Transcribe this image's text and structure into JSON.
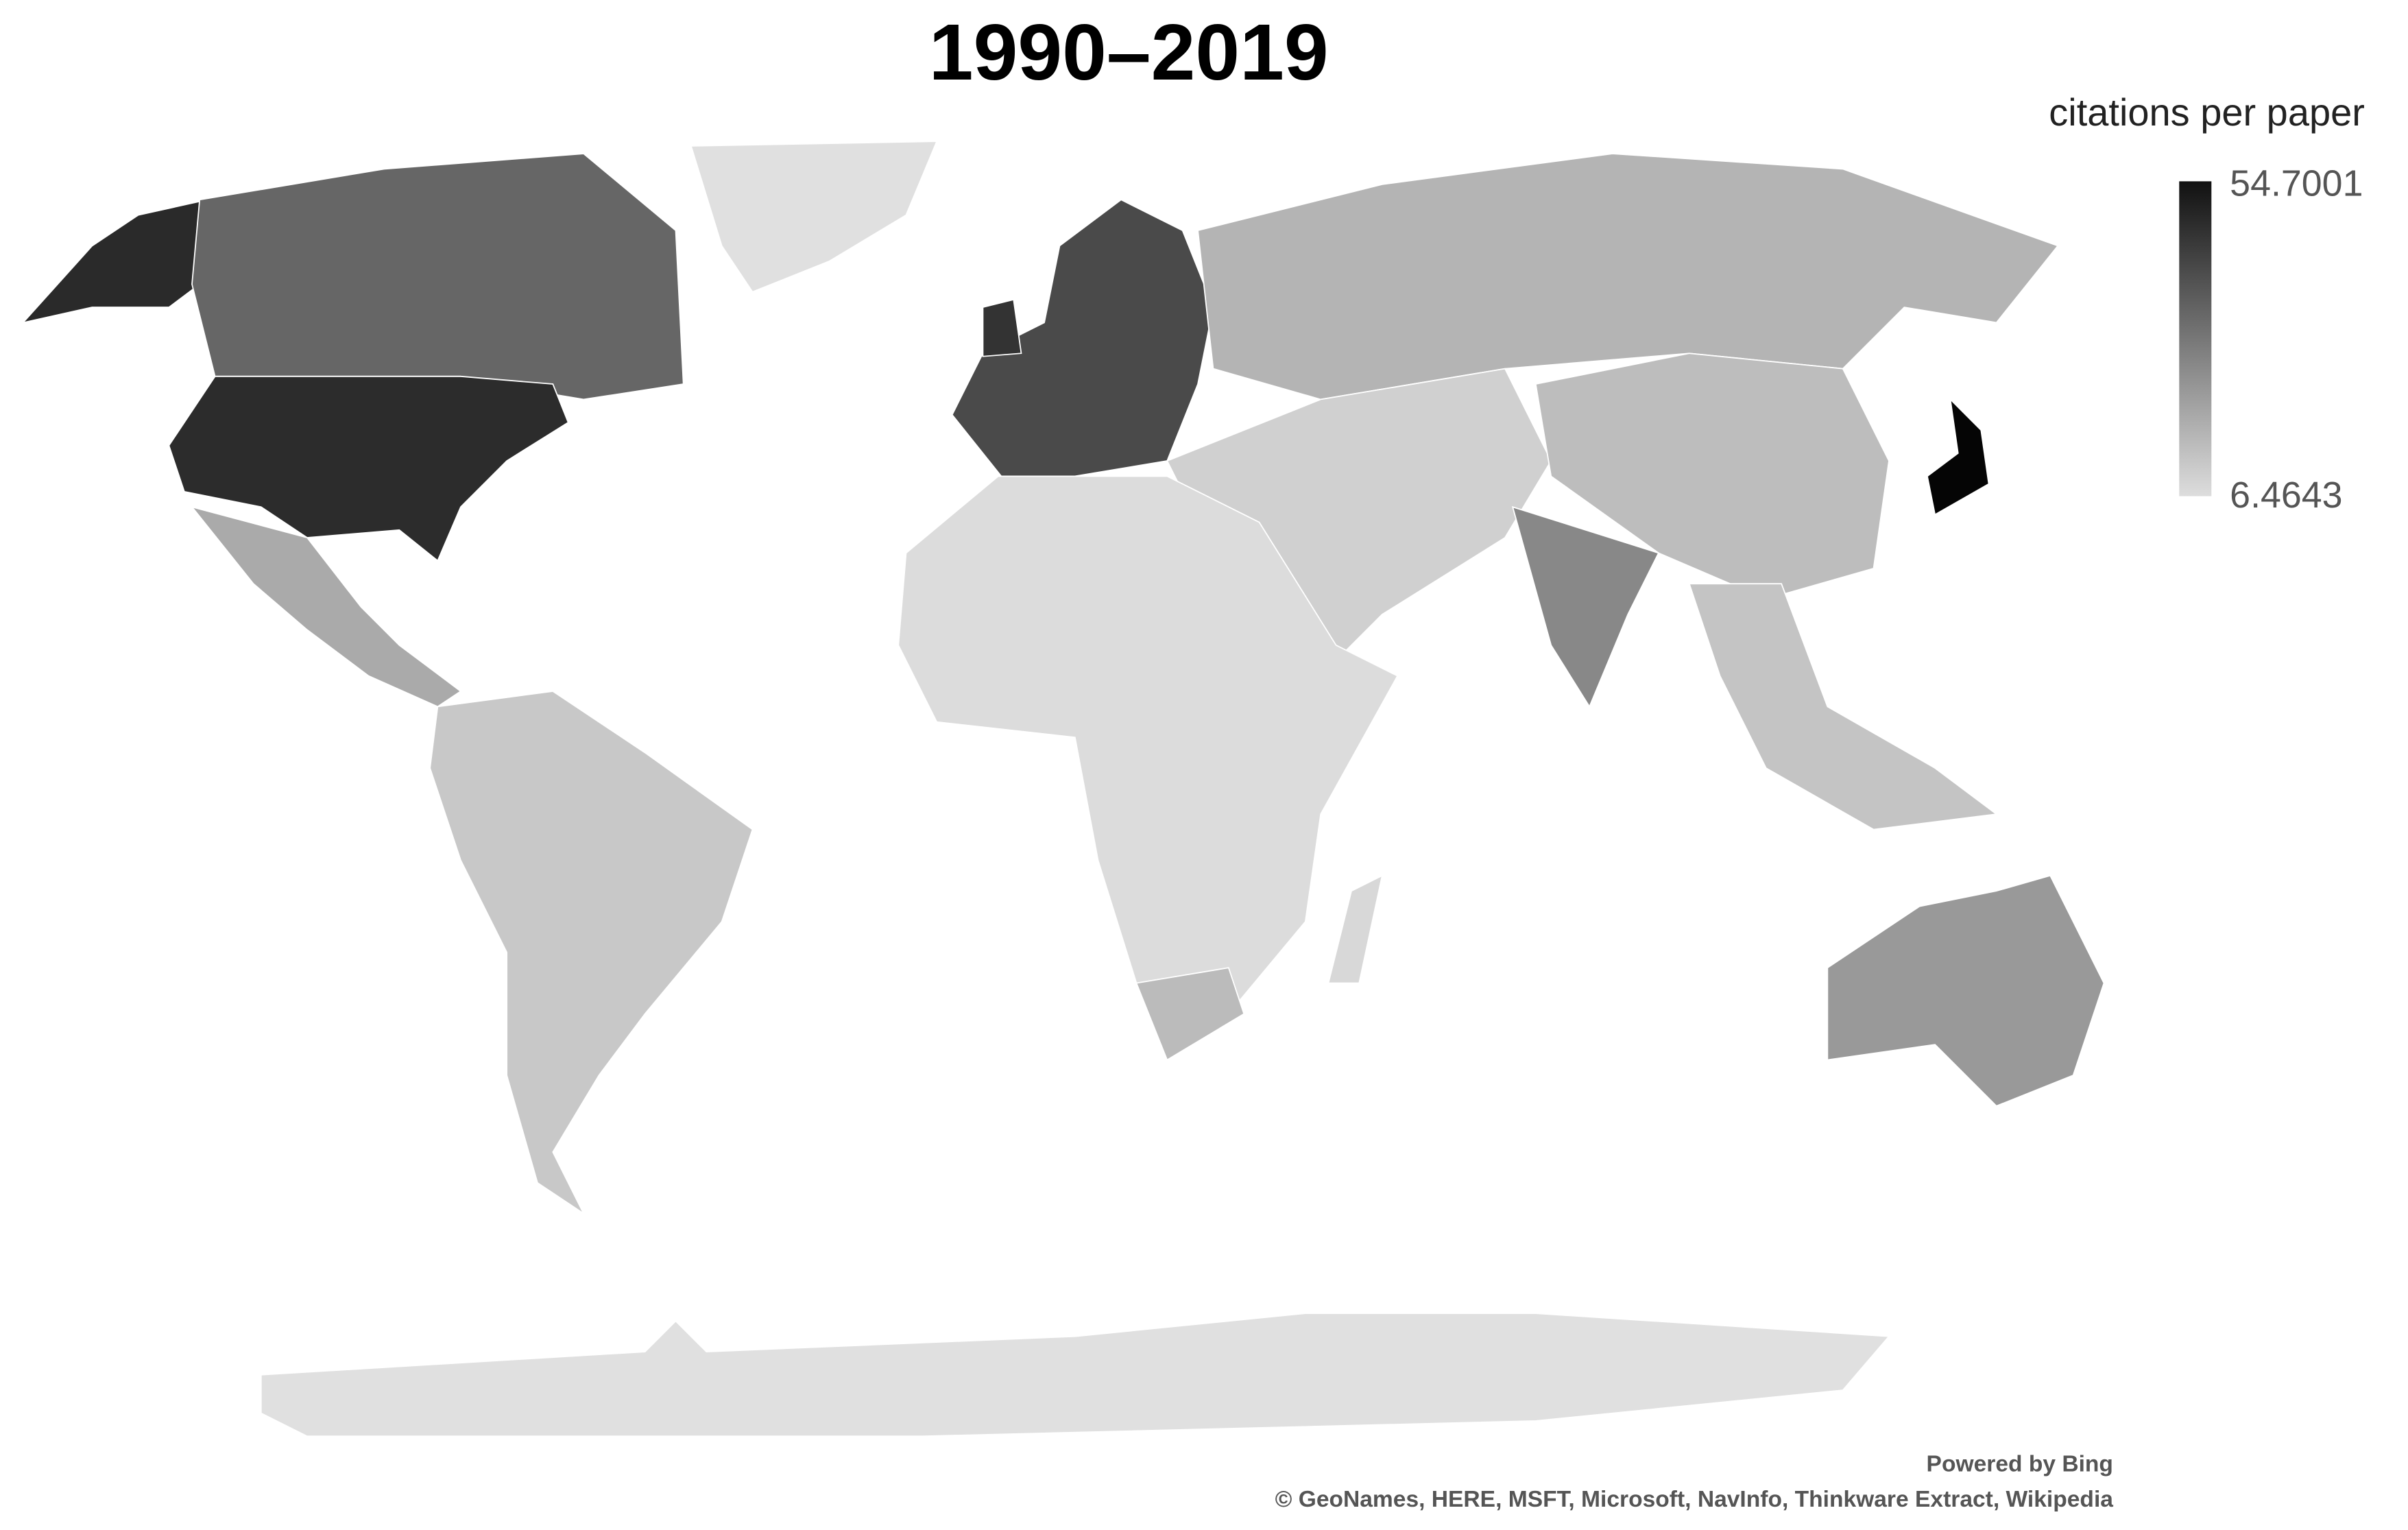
{
  "title": "1990–2019",
  "legend": {
    "title": "citations per paper",
    "max": 54.7001,
    "min": 6.4643
  },
  "attribution": {
    "line1": "Powered by Bing",
    "line2": "© GeoNames, HERE, MSFT, Microsoft, NavInfo, Thinkware Extract, Wikipedia"
  }
}
